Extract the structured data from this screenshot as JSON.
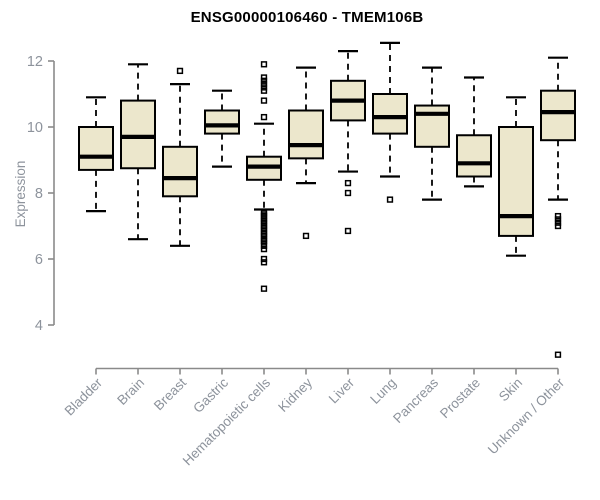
{
  "chart_data": {
    "type": "boxplot",
    "title": "ENSG00000106460 - TMEM106B",
    "xlabel": "",
    "ylabel": "Expression",
    "y_ticks": [
      4,
      6,
      8,
      10,
      12
    ],
    "ylim": [
      4,
      12
    ],
    "grid": false,
    "legend": false,
    "categories": [
      "Bladder",
      "Brain",
      "Breast",
      "Gastric",
      "Hematopoietic cells",
      "Kidney",
      "Liver",
      "Lung",
      "Pancreas",
      "Prostate",
      "Skin",
      "Unknown / Other"
    ],
    "series": [
      {
        "category": "Bladder",
        "low": 7.45,
        "q1": 8.7,
        "median": 9.1,
        "q3": 10.0,
        "high": 10.9,
        "outliers": []
      },
      {
        "category": "Brain",
        "low": 6.6,
        "q1": 8.75,
        "median": 9.7,
        "q3": 10.8,
        "high": 11.9,
        "outliers": []
      },
      {
        "category": "Breast",
        "low": 6.4,
        "q1": 7.9,
        "median": 8.45,
        "q3": 9.4,
        "high": 11.3,
        "outliers": [
          11.7
        ]
      },
      {
        "category": "Gastric",
        "low": 8.8,
        "q1": 9.8,
        "median": 10.05,
        "q3": 10.5,
        "high": 11.1,
        "outliers": []
      },
      {
        "category": "Hematopoietic cells",
        "low": 7.5,
        "q1": 8.4,
        "median": 8.8,
        "q3": 9.1,
        "high": 10.1,
        "outliers": [
          11.9,
          11.5,
          11.4,
          11.3,
          11.2,
          11.1,
          10.8,
          10.3,
          7.4,
          7.35,
          7.3,
          7.2,
          7.15,
          7.1,
          7.0,
          6.95,
          6.9,
          6.8,
          6.75,
          6.7,
          6.6,
          6.55,
          6.5,
          6.4,
          6.3,
          6.0,
          5.9,
          5.1
        ]
      },
      {
        "category": "Kidney",
        "low": 8.3,
        "q1": 9.05,
        "median": 9.45,
        "q3": 10.5,
        "high": 11.8,
        "outliers": [
          6.7
        ]
      },
      {
        "category": "Liver",
        "low": 8.65,
        "q1": 10.2,
        "median": 10.8,
        "q3": 11.4,
        "high": 12.3,
        "outliers": [
          8.3,
          8.0,
          6.85
        ]
      },
      {
        "category": "Lung",
        "low": 8.5,
        "q1": 9.8,
        "median": 10.3,
        "q3": 11.0,
        "high": 12.55,
        "outliers": [
          7.8
        ]
      },
      {
        "category": "Pancreas",
        "low": 7.8,
        "q1": 9.4,
        "median": 10.4,
        "q3": 10.65,
        "high": 11.8,
        "outliers": []
      },
      {
        "category": "Prostate",
        "low": 8.2,
        "q1": 8.5,
        "median": 8.9,
        "q3": 9.75,
        "high": 11.5,
        "outliers": []
      },
      {
        "category": "Skin",
        "low": 6.1,
        "q1": 6.7,
        "median": 7.3,
        "q3": 10.0,
        "high": 10.9,
        "outliers": []
      },
      {
        "category": "Unknown / Other",
        "low": 7.8,
        "q1": 9.6,
        "median": 10.45,
        "q3": 11.1,
        "high": 12.1,
        "outliers": [
          7.3,
          7.2,
          7.1,
          7.0,
          3.1
        ]
      }
    ],
    "colors": {
      "background": "#ffffff",
      "box_fill": "#ece7cc",
      "box_stroke": "#000000",
      "median": "#000000",
      "axis": "#8a8a8a",
      "axis_text": "#8d939c",
      "title": "#000000"
    }
  }
}
